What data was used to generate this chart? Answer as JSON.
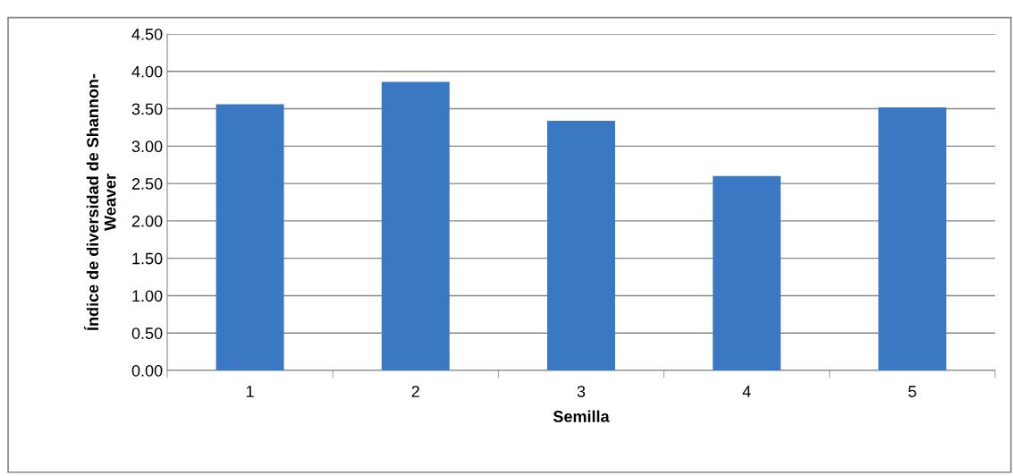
{
  "chart_data": {
    "type": "bar",
    "xlabel": "Semilla",
    "ylabel": "Índice de diversidad de Shannon-\nWeaver",
    "categories": [
      "1",
      "2",
      "3",
      "4",
      "5"
    ],
    "values": [
      3.56,
      3.86,
      3.34,
      2.6,
      3.52
    ],
    "color": "#3a78c4",
    "ylim": [
      0,
      4.5
    ],
    "yticks": [
      {
        "value": 0,
        "label": "0.00"
      },
      {
        "value": 0.5,
        "label": "0.50"
      },
      {
        "value": 1,
        "label": "1.00"
      },
      {
        "value": 1.5,
        "label": "1.50"
      },
      {
        "value": 2,
        "label": "2.00"
      },
      {
        "value": 2.5,
        "label": "2.50"
      },
      {
        "value": 3,
        "label": "3.00"
      },
      {
        "value": 3.5,
        "label": "3.50"
      },
      {
        "value": 4,
        "label": "4.00"
      },
      {
        "value": 4.5,
        "label": "4.50"
      }
    ],
    "grid": "y"
  }
}
